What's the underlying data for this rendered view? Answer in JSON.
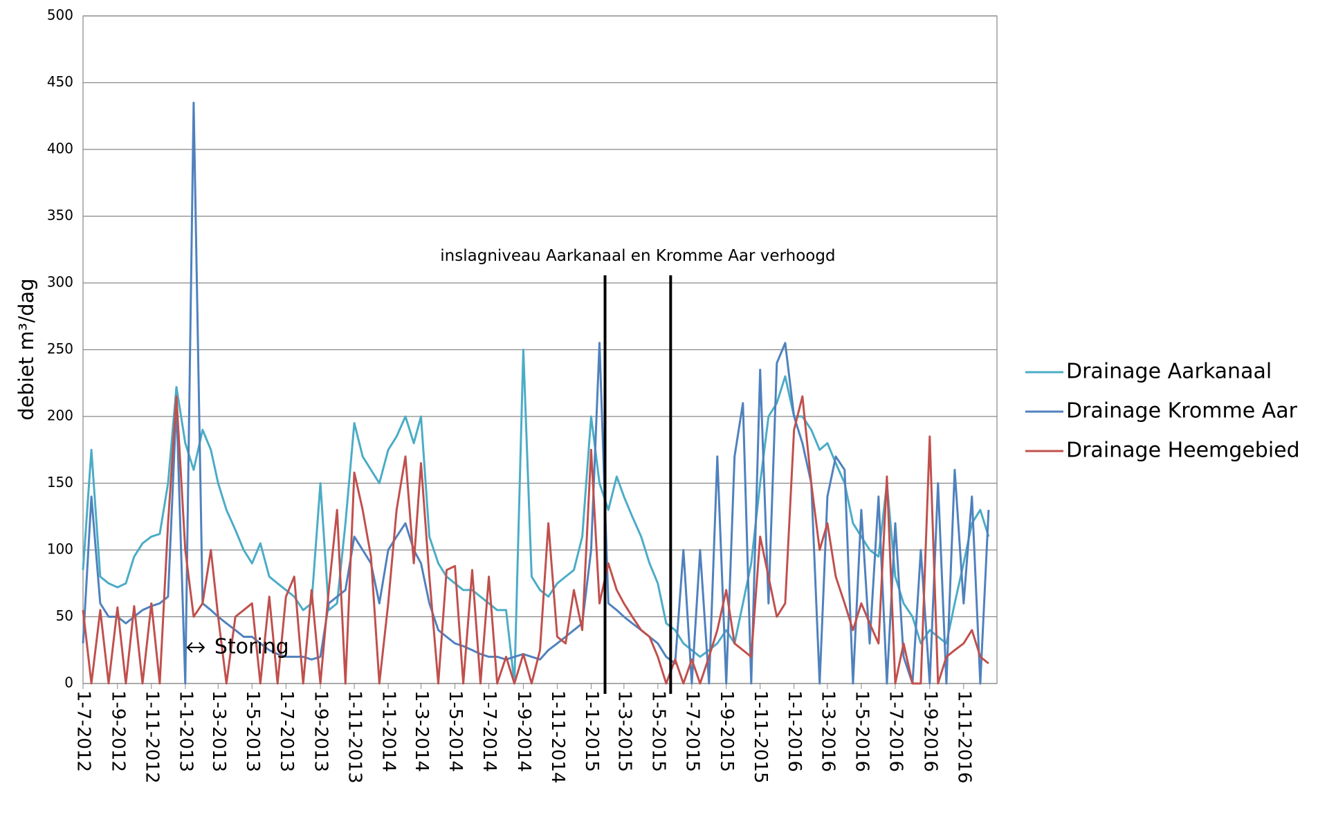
{
  "chart_data": {
    "type": "line",
    "ylabel": "debiet m³/dag",
    "x": [
      "2012-07-01",
      "2012-07-16",
      "2012-08-01",
      "2012-08-16",
      "2012-09-01",
      "2012-09-16",
      "2012-10-01",
      "2012-10-16",
      "2012-11-01",
      "2012-11-16",
      "2012-12-01",
      "2012-12-16",
      "2013-01-01",
      "2013-01-16",
      "2013-02-01",
      "2013-02-16",
      "2013-03-01",
      "2013-03-16",
      "2013-04-01",
      "2013-04-16",
      "2013-05-01",
      "2013-05-16",
      "2013-06-01",
      "2013-06-16",
      "2013-07-01",
      "2013-07-16",
      "2013-08-01",
      "2013-08-16",
      "2013-09-01",
      "2013-09-16",
      "2013-10-01",
      "2013-10-16",
      "2013-11-01",
      "2013-11-16",
      "2013-12-01",
      "2013-12-16",
      "2014-01-01",
      "2014-01-16",
      "2014-02-01",
      "2014-02-16",
      "2014-03-01",
      "2014-03-16",
      "2014-04-01",
      "2014-04-16",
      "2014-05-01",
      "2014-05-16",
      "2014-06-01",
      "2014-06-16",
      "2014-07-01",
      "2014-07-16",
      "2014-08-01",
      "2014-08-16",
      "2014-09-01",
      "2014-09-16",
      "2014-10-01",
      "2014-10-16",
      "2014-11-01",
      "2014-11-16",
      "2014-12-01",
      "2014-12-16",
      "2015-01-01",
      "2015-01-16",
      "2015-02-01",
      "2015-02-16",
      "2015-03-01",
      "2015-03-16",
      "2015-04-01",
      "2015-04-16",
      "2015-05-01",
      "2015-05-16",
      "2015-06-01",
      "2015-06-16",
      "2015-07-01",
      "2015-07-16",
      "2015-08-01",
      "2015-08-16",
      "2015-09-01",
      "2015-09-16",
      "2015-10-01",
      "2015-10-16",
      "2015-11-01",
      "2015-11-16",
      "2015-12-01",
      "2015-12-16",
      "2016-01-01",
      "2016-01-16",
      "2016-02-01",
      "2016-02-16",
      "2016-03-01",
      "2016-03-16",
      "2016-04-01",
      "2016-04-16",
      "2016-05-01",
      "2016-05-16",
      "2016-06-01",
      "2016-06-16",
      "2016-07-01",
      "2016-07-16",
      "2016-08-01",
      "2016-08-16",
      "2016-09-01",
      "2016-09-16",
      "2016-10-01",
      "2016-10-16",
      "2016-11-01",
      "2016-11-16",
      "2016-12-01",
      "2016-12-16"
    ],
    "series": [
      {
        "name": "Drainage Aarkanaal",
        "color": "#4bacc6",
        "values": [
          85,
          175,
          80,
          75,
          72,
          75,
          95,
          105,
          110,
          112,
          150,
          222,
          180,
          160,
          190,
          175,
          150,
          130,
          115,
          100,
          90,
          105,
          80,
          75,
          70,
          65,
          55,
          60,
          150,
          55,
          60,
          120,
          195,
          170,
          160,
          150,
          175,
          185,
          200,
          180,
          200,
          110,
          90,
          80,
          75,
          70,
          70,
          65,
          60,
          55,
          55,
          0,
          250,
          80,
          70,
          65,
          75,
          80,
          85,
          110,
          200,
          150,
          130,
          155,
          140,
          125,
          110,
          90,
          75,
          45,
          40,
          30,
          25,
          20,
          25,
          30,
          40,
          30,
          60,
          90,
          150,
          200,
          210,
          230,
          200,
          200,
          190,
          175,
          180,
          165,
          150,
          120,
          110,
          100,
          95,
          150,
          80,
          60,
          50,
          30,
          40,
          35,
          30,
          60,
          90,
          120,
          130,
          110
        ]
      },
      {
        "name": "Drainage Kromme Aar",
        "color": "#4f81bd",
        "values": [
          30,
          140,
          60,
          50,
          50,
          45,
          50,
          55,
          58,
          60,
          65,
          210,
          0,
          435,
          60,
          55,
          50,
          45,
          40,
          35,
          35,
          30,
          25,
          22,
          20,
          20,
          20,
          18,
          20,
          60,
          65,
          70,
          110,
          100,
          90,
          60,
          100,
          110,
          120,
          100,
          90,
          60,
          40,
          35,
          30,
          28,
          25,
          22,
          20,
          20,
          18,
          20,
          22,
          20,
          18,
          25,
          30,
          35,
          40,
          45,
          100,
          255,
          60,
          55,
          50,
          45,
          40,
          35,
          30,
          20,
          15,
          100,
          0,
          100,
          0,
          170,
          0,
          170,
          210,
          0,
          235,
          60,
          240,
          255,
          200,
          180,
          150,
          0,
          140,
          170,
          160,
          0,
          130,
          30,
          140,
          0,
          120,
          20,
          0,
          100,
          0,
          150,
          0,
          160,
          60,
          140,
          0,
          130
        ]
      },
      {
        "name": "Drainage Heemgebied",
        "color": "#c0504d",
        "values": [
          55,
          0,
          55,
          0,
          57,
          0,
          58,
          0,
          60,
          0,
          120,
          215,
          100,
          50,
          60,
          100,
          50,
          0,
          50,
          55,
          60,
          0,
          65,
          0,
          65,
          80,
          0,
          70,
          0,
          70,
          130,
          0,
          158,
          130,
          95,
          0,
          60,
          130,
          170,
          90,
          165,
          80,
          0,
          85,
          88,
          0,
          85,
          0,
          80,
          0,
          20,
          0,
          22,
          0,
          25,
          120,
          35,
          30,
          70,
          40,
          175,
          60,
          90,
          70,
          60,
          50,
          40,
          35,
          20,
          0,
          18,
          0,
          18,
          0,
          20,
          40,
          70,
          30,
          25,
          20,
          110,
          80,
          50,
          60,
          190,
          215,
          150,
          100,
          120,
          80,
          60,
          40,
          60,
          45,
          30,
          155,
          0,
          30,
          0,
          0,
          185,
          0,
          20,
          25,
          30,
          40,
          20,
          15
        ]
      }
    ],
    "xlim": [
      "2012-07-01",
      "2016-12-31"
    ],
    "xticks": [
      {
        "value": "2012-07-01",
        "label": "1-7-2012"
      },
      {
        "value": "2012-09-01",
        "label": "1-9-2012"
      },
      {
        "value": "2012-11-01",
        "label": "1-11-2012"
      },
      {
        "value": "2013-01-01",
        "label": "1-1-2013"
      },
      {
        "value": "2013-03-01",
        "label": "1-3-2013"
      },
      {
        "value": "2013-05-01",
        "label": "1-5-2013"
      },
      {
        "value": "2013-07-01",
        "label": "1-7-2013"
      },
      {
        "value": "2013-09-01",
        "label": "1-9-2013"
      },
      {
        "value": "2013-11-01",
        "label": "1-11-2013"
      },
      {
        "value": "2014-01-01",
        "label": "1-1-2014"
      },
      {
        "value": "2014-03-01",
        "label": "1-3-2014"
      },
      {
        "value": "2014-05-01",
        "label": "1-5-2014"
      },
      {
        "value": "2014-07-01",
        "label": "1-7-2014"
      },
      {
        "value": "2014-09-01",
        "label": "1-9-2014"
      },
      {
        "value": "2014-11-01",
        "label": "1-11-2014"
      },
      {
        "value": "2015-01-01",
        "label": "1-1-2015"
      },
      {
        "value": "2015-03-01",
        "label": "1-3-2015"
      },
      {
        "value": "2015-05-01",
        "label": "1-5-2015"
      },
      {
        "value": "2015-07-01",
        "label": "1-7-2015"
      },
      {
        "value": "2015-09-01",
        "label": "1-9-2015"
      },
      {
        "value": "2015-11-01",
        "label": "1-11-2015"
      },
      {
        "value": "2016-01-01",
        "label": "1-1-2016"
      },
      {
        "value": "2016-03-01",
        "label": "1-3-2016"
      },
      {
        "value": "2016-05-01",
        "label": "1-5-2016"
      },
      {
        "value": "2016-07-01",
        "label": "1-7-2016"
      },
      {
        "value": "2016-09-01",
        "label": "1-9-2016"
      },
      {
        "value": "2016-11-01",
        "label": "1-11-2016"
      }
    ],
    "ylim": [
      0,
      500
    ],
    "yticks": [
      0,
      50,
      100,
      150,
      200,
      250,
      300,
      350,
      400,
      450,
      500
    ],
    "grid": true,
    "legend": "right",
    "vlines": [
      "2015-01-26",
      "2015-05-24"
    ],
    "annotations": [
      {
        "text": "inslagniveau Aarkanaal en Kromme Aar verhoogd",
        "x": "2015-03-26",
        "y": 320
      },
      {
        "text": "Storing",
        "x": "2013-01-01",
        "y": 27
      }
    ]
  }
}
